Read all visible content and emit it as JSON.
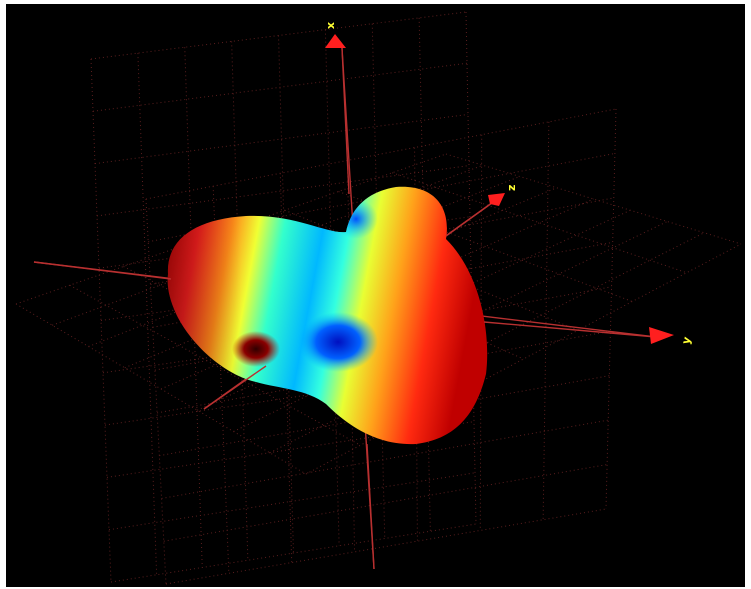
{
  "scene": {
    "background": "#000000",
    "grid_color": "#5a1e1e",
    "axis_color": "#b83030",
    "arrow_color": "#ff1f1f",
    "label_color": "#ffff33",
    "colormap": [
      "#0000c8",
      "#00c8ff",
      "#e6ff33",
      "#ff9a1a",
      "#ff1a1a",
      "#a00000"
    ]
  },
  "axes": {
    "x_label": "x",
    "y_label": "y",
    "z_label": "z"
  }
}
